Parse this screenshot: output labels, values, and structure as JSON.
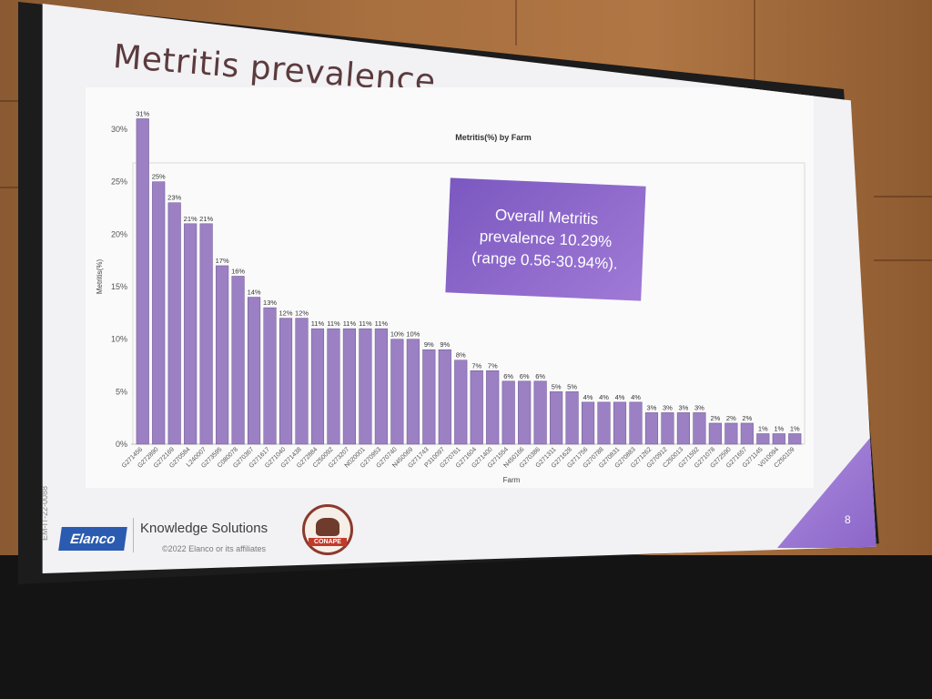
{
  "slide": {
    "title": "Metritis prevalence",
    "callout": "Overall Metritis prevalence 10.29% (range 0.56-30.94%).",
    "page_number": "8",
    "footer": {
      "brand": "Elanco",
      "section": "Knowledge Solutions",
      "copyright": "©2022 Elanco or its affiliates",
      "side_code": "EM-IT-22-0088",
      "seal_text": "CONAPE"
    }
  },
  "chart_data": {
    "type": "bar",
    "title": "Metritis(%) by Farm",
    "xlabel": "Farm",
    "ylabel": "Metritis(%)",
    "ylim": [
      0,
      30
    ],
    "yticks": [
      "0%",
      "5%",
      "10%",
      "15%",
      "20%",
      "25%",
      "30%"
    ],
    "categories": [
      "G271456",
      "G272890",
      "G272169",
      "G270584",
      "L240007",
      "G273595",
      "C080078",
      "G270367",
      "G271617",
      "G271040",
      "G271438",
      "G272884",
      "C250092",
      "G273207",
      "N020001",
      "G270953",
      "G270740",
      "N450069",
      "G271743",
      "P310097",
      "G270761",
      "G271604",
      "G271400",
      "G271554",
      "N450166",
      "G270386",
      "G271311",
      "G271628",
      "G271756",
      "G270788",
      "G270831",
      "G270883",
      "G271262",
      "G270912",
      "C250013",
      "G271592",
      "G271078",
      "G272590",
      "G271657",
      "G271145",
      "V010094",
      "C250109"
    ],
    "values": [
      31,
      25,
      23,
      21,
      21,
      17,
      16,
      14,
      13,
      12,
      12,
      11,
      11,
      11,
      11,
      11,
      10,
      10,
      9,
      9,
      8,
      7,
      7,
      6,
      6,
      6,
      5,
      5,
      4,
      4,
      4,
      4,
      3,
      3,
      3,
      3,
      2,
      2,
      2,
      1,
      1,
      1
    ],
    "labels": [
      "31%",
      "25%",
      "23%",
      "21%",
      "21%",
      "17%",
      "16%",
      "14%",
      "13%",
      "12%",
      "12%",
      "11%",
      "11%",
      "11%",
      "11%",
      "11%",
      "10%",
      "10%",
      "9%",
      "9%",
      "8%",
      "7%",
      "7%",
      "6%",
      "6%",
      "6%",
      "5%",
      "5%",
      "4%",
      "4%",
      "4%",
      "4%",
      "3%",
      "3%",
      "3%",
      "3%",
      "2%",
      "2%",
      "2%",
      "1%",
      "1%",
      "1%"
    ],
    "colors": {
      "bar": "#9b80c4",
      "bar_stroke": "#6f568f",
      "text": "#333333"
    },
    "grid": false
  }
}
